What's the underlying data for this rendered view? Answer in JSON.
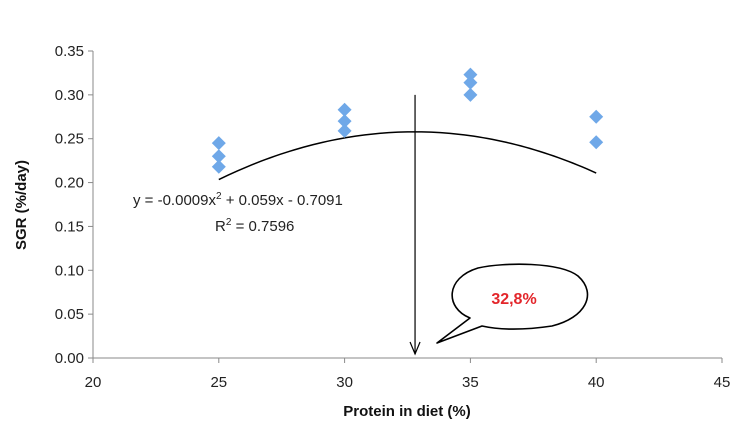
{
  "chart_data": {
    "type": "scatter",
    "title": "",
    "xlabel": "Protein in diet (%)",
    "ylabel": "SGR (%/day)",
    "xlim": [
      20,
      45
    ],
    "ylim": [
      0,
      0.35
    ],
    "xticks": [
      20,
      25,
      30,
      35,
      40,
      45
    ],
    "yticks": [
      0.0,
      0.05,
      0.1,
      0.15,
      0.2,
      0.25,
      0.3,
      0.35
    ],
    "xtick_labels": [
      "20",
      "25",
      "30",
      "35",
      "40",
      "45"
    ],
    "ytick_labels": [
      "0.00",
      "0.05",
      "0.10",
      "0.15",
      "0.20",
      "0.25",
      "0.30",
      "0.35"
    ],
    "grid": false,
    "legend": "none",
    "series": [
      {
        "marker": "diamond",
        "color": "#6fa8e8",
        "x": [
          25,
          25,
          25,
          30,
          30,
          30,
          35,
          35,
          35,
          40,
          40
        ],
        "y": [
          0.245,
          0.23,
          0.218,
          0.283,
          0.27,
          0.259,
          0.323,
          0.314,
          0.3,
          0.275,
          0.246
        ]
      }
    ],
    "trendline": {
      "type": "polynomial",
      "coefficients": [
        -0.0009,
        0.059,
        -0.7091
      ],
      "x_range": [
        25,
        40
      ],
      "color": "#000000",
      "equation_prefix": "y = -0.0009x",
      "equation_sup": "2",
      "equation_suffix": " + 0.059x - 0.7091",
      "r2_prefix": "R",
      "r2_sup": "2",
      "r2_suffix": " = 0.7596"
    },
    "annotations": [
      {
        "type": "vertical-arrow",
        "x": 32.8,
        "y_from": 0.3,
        "y_to": 0.0,
        "color": "#000000"
      },
      {
        "type": "callout",
        "text": "32,8%",
        "text_color": "#e3262b",
        "border_color": "#000000"
      }
    ]
  }
}
